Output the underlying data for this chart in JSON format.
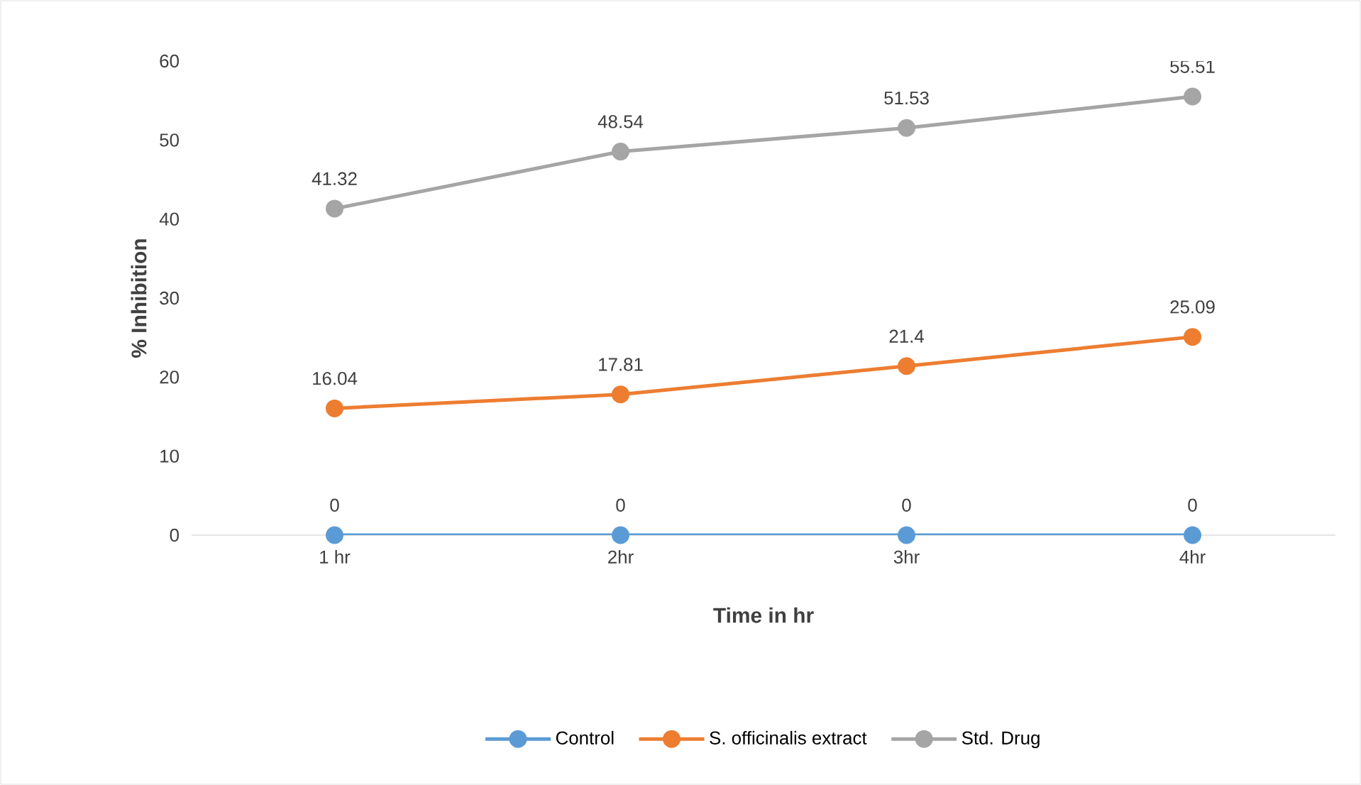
{
  "chart_data": {
    "type": "line",
    "xlabel": "Time in hr",
    "ylabel": "% Inhibition",
    "categories": [
      "1 hr",
      "2hr",
      "3hr",
      "4hr"
    ],
    "series": [
      {
        "name": "Control",
        "color": "#5b9bd5",
        "values": [
          0,
          0,
          0,
          0
        ]
      },
      {
        "name": "S. officinalis extract",
        "color": "#ed7d31",
        "values": [
          16.04,
          17.81,
          21.4,
          25.09
        ]
      },
      {
        "name": "Std. Drug",
        "color": "#a5a5a5",
        "values": [
          41.32,
          48.54,
          51.53,
          55.51
        ]
      }
    ],
    "ylim": [
      0,
      60
    ],
    "yticks": [
      0,
      10,
      20,
      30,
      40,
      50,
      60
    ],
    "data_labels": true,
    "grid": false,
    "legend": "bottom",
    "marker": "circle",
    "line_style": "solid"
  }
}
